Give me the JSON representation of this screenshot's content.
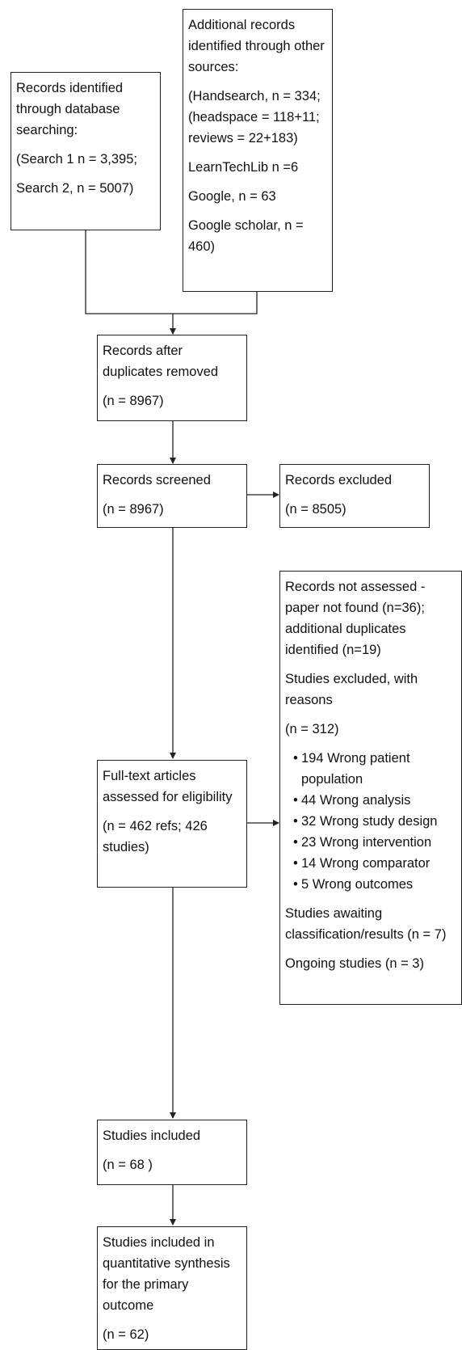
{
  "db_search": {
    "title": "Records identified through database searching:",
    "search1": "(Search 1 n = 3,395;",
    "search2": "Search 2, n = 5007)"
  },
  "other_sources": {
    "title": "Additional records identified through other sources:",
    "handsearch": "(Handsearch, n = 334; (headspace = 118+11; reviews = 22+183)",
    "learntechlib": "LearnTechLib n =6",
    "google": "Google, n = 63",
    "google_scholar": "Google scholar, n = 460)"
  },
  "after_duplicates": {
    "title": "Records after duplicates removed",
    "count": "(n = 8967)"
  },
  "screened": {
    "title": "Records screened",
    "count": "(n = 8967)"
  },
  "excluded": {
    "title": "Records excluded",
    "count": "(n = 8505)"
  },
  "fulltext": {
    "title": "Full-text articles assessed for eligibility",
    "count": "(n = 462 refs; 426 studies)"
  },
  "fulltext_excluded": {
    "not_assessed": "Records not assessed - paper not found (n=36); additional duplicates identified (n=19)",
    "excluded_title": "Studies excluded, with reasons",
    "excluded_count": "(n = 312)",
    "reasons": [
      "194 Wrong patient population",
      "44 Wrong analysis",
      "32 Wrong study design",
      "23 Wrong intervention",
      "14 Wrong comparator",
      "5 Wrong outcomes"
    ],
    "awaiting": "Studies awaiting classification/results (n = 7)",
    "ongoing": "Ongoing studies (n = 3)"
  },
  "included": {
    "title": "Studies included",
    "count": "(n = 68 )"
  },
  "quantitative": {
    "title": "Studies included in quantitative synthesis for the primary outcome",
    "count": "(n = 62)"
  }
}
